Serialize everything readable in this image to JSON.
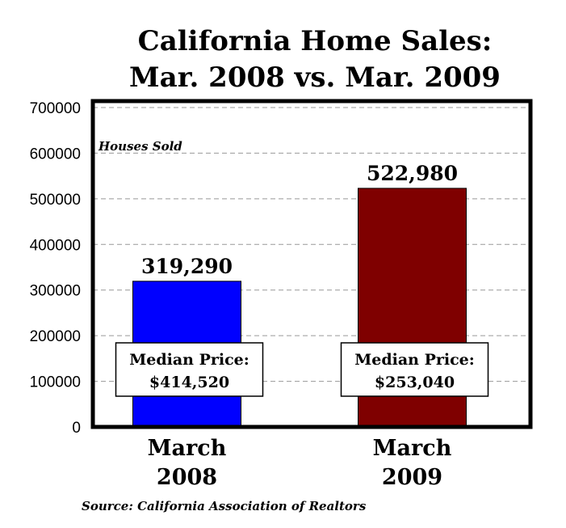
{
  "chart_data": {
    "type": "bar",
    "title_lines": [
      "California Home Sales:",
      "Mar. 2008 vs. Mar. 2009"
    ],
    "ylabel": "Houses Sold",
    "ylim": [
      0,
      700000
    ],
    "yticks": [
      0,
      100000,
      200000,
      300000,
      400000,
      500000,
      600000,
      700000
    ],
    "grid": true,
    "categories": [
      {
        "lines": [
          "March",
          "2008"
        ]
      },
      {
        "lines": [
          "March",
          "2009"
        ]
      }
    ],
    "values": [
      319290,
      522980
    ],
    "value_labels": [
      "319,290",
      "522,980"
    ],
    "colors": [
      "#0000FF",
      "#7F0000"
    ],
    "annotations": [
      {
        "lines": [
          "Median Price:",
          "$414,520"
        ]
      },
      {
        "lines": [
          "Median Price:",
          "$253,040"
        ]
      }
    ],
    "source": "Source: California Association of Realtors"
  }
}
